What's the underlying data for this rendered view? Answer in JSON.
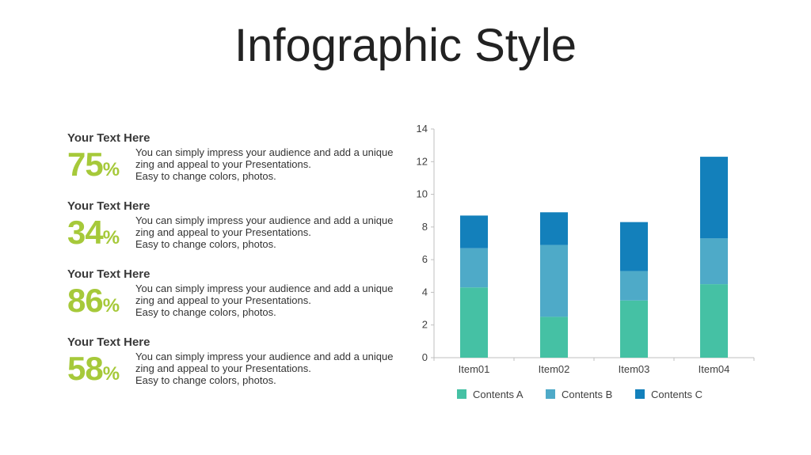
{
  "title": "Infographic Style",
  "stats": [
    {
      "heading": "Your Text Here",
      "value": "75",
      "unit": "%",
      "lines": [
        "You can simply impress your audience and add a unique",
        "zing and appeal to your Presentations.",
        "Easy to change colors, photos."
      ]
    },
    {
      "heading": "Your Text Here",
      "value": "34",
      "unit": "%",
      "lines": [
        "You can simply impress your audience and add a unique",
        "zing and appeal to your Presentations.",
        "Easy to change colors, photos."
      ]
    },
    {
      "heading": "Your Text Here",
      "value": "86",
      "unit": "%",
      "lines": [
        "You can simply impress your audience and add a unique",
        "zing and appeal to your Presentations.",
        "Easy to change colors, photos."
      ]
    },
    {
      "heading": "Your Text Here",
      "value": "58",
      "unit": "%",
      "lines": [
        "You can simply impress your audience and add a unique",
        "zing and appeal to your Presentations.",
        "Easy to change colors, photos."
      ]
    }
  ],
  "chart_data": {
    "type": "bar",
    "stacked": true,
    "categories": [
      "Item01",
      "Item02",
      "Item03",
      "Item04"
    ],
    "series": [
      {
        "name": "Contents A",
        "values": [
          4.3,
          2.5,
          3.5,
          4.5
        ],
        "color": "#45c1a4"
      },
      {
        "name": "Contents B",
        "values": [
          2.4,
          4.4,
          1.8,
          2.8
        ],
        "color": "#4eaac8"
      },
      {
        "name": "Contents C",
        "values": [
          2.0,
          2.0,
          3.0,
          5.0
        ],
        "color": "#1380bb"
      }
    ],
    "ylim": [
      0,
      14
    ],
    "yticks": [
      0,
      2,
      4,
      6,
      8,
      10,
      12,
      14
    ],
    "legend_position": "bottom",
    "grid": false
  }
}
